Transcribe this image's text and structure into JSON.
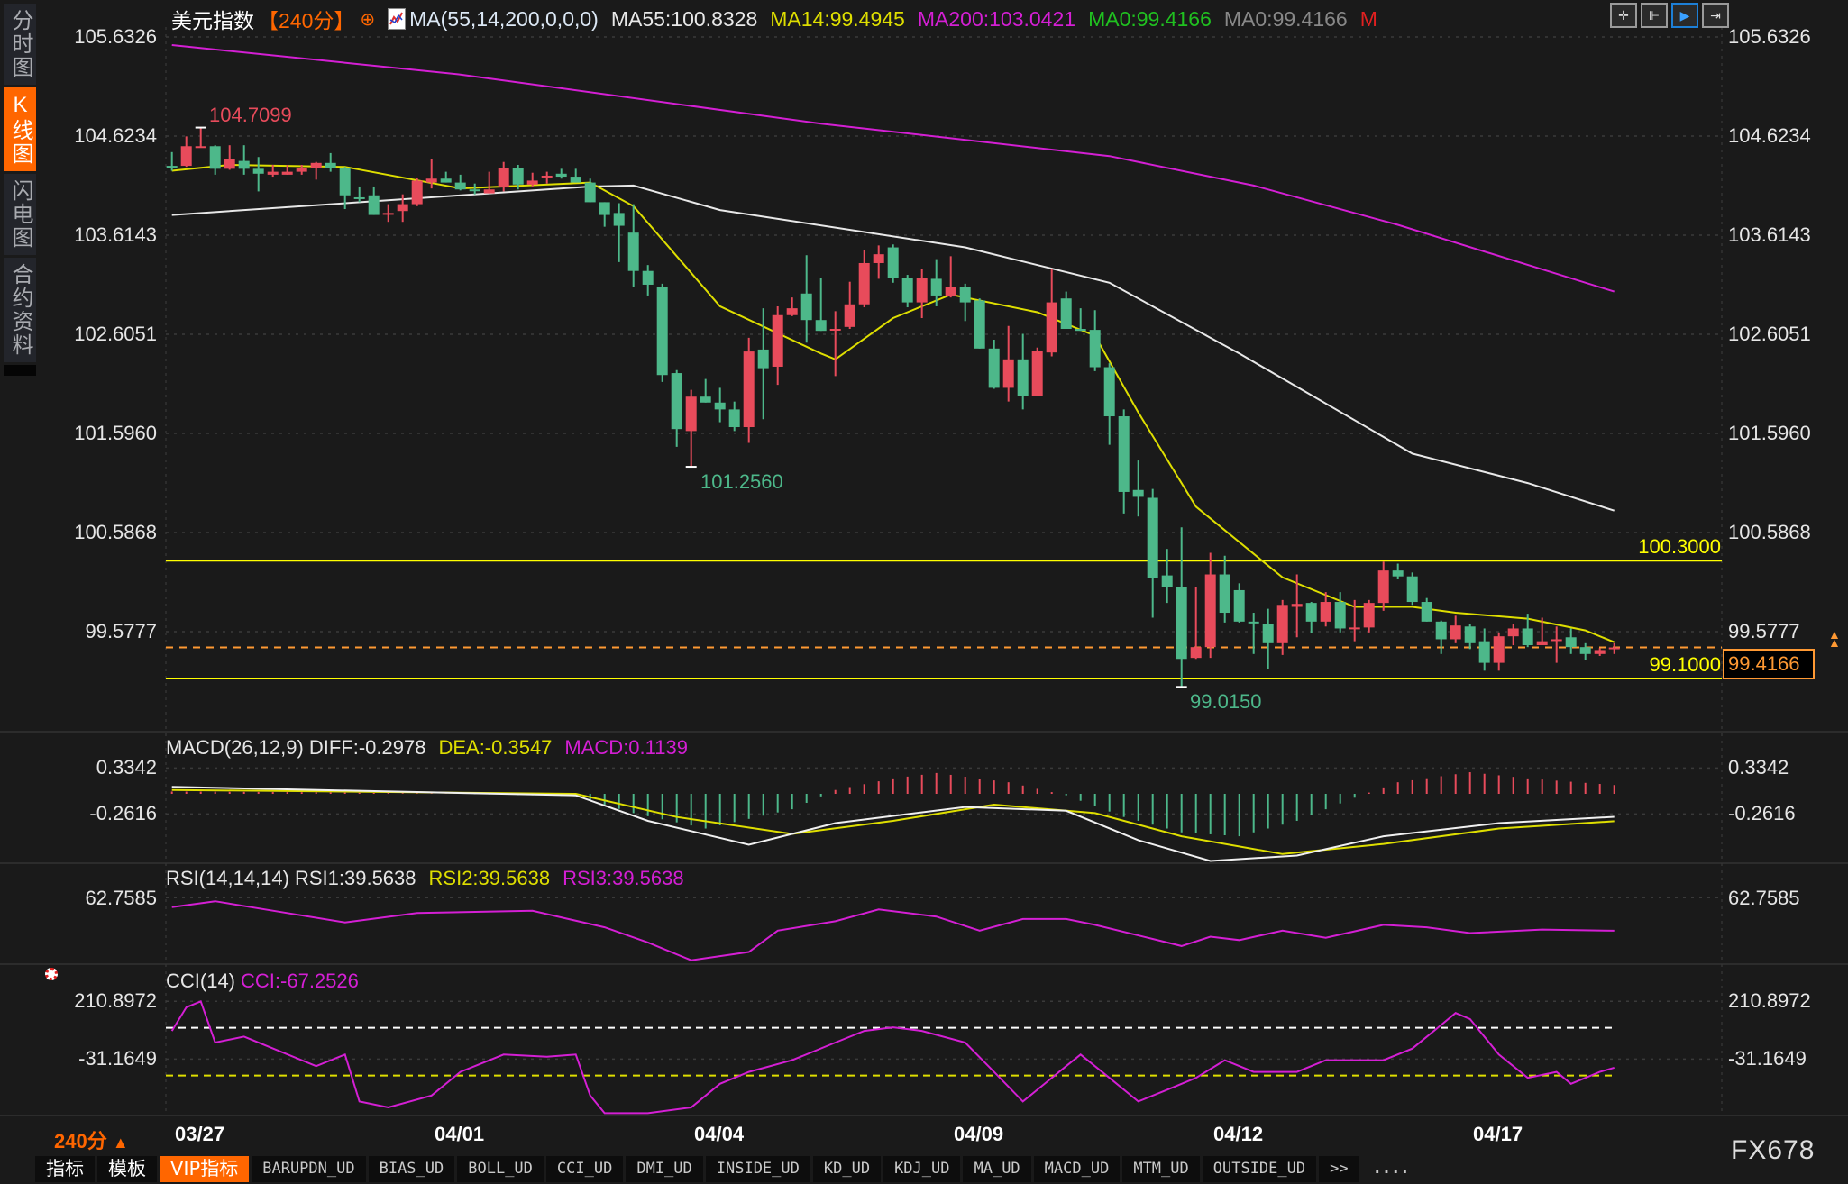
{
  "sidebar": {
    "tabs": [
      {
        "label": "分时图"
      },
      {
        "label": "K线图",
        "active": true
      },
      {
        "label": "闪电图"
      },
      {
        "label": "合约资料"
      }
    ]
  },
  "header": {
    "symbol": "美元指数",
    "period": "【240分】",
    "period_icon": "crosshair-circle-icon",
    "ma_params": "MA(55,14,200,0,0,0)",
    "ma55": "MA55:100.8328",
    "ma14": "MA14:99.4945",
    "ma200": "MA200:103.0421",
    "ma0a": "MA0:99.4166",
    "ma0b": "MA0:99.4166",
    "m": "M"
  },
  "toolbar": {
    "icons": [
      "crosshair-icon",
      "fit-range-icon",
      "play-forward-icon",
      "jump-end-icon"
    ],
    "active": 2
  },
  "colors": {
    "up": "#e84b5b",
    "down": "#4db88a",
    "ma55": "#e8e8e8",
    "ma14": "#dede00",
    "ma200": "#d41fd4",
    "support": "#ffff00",
    "current": "#ff9933",
    "accent": "#ff6600"
  },
  "price_axis": {
    "labels": [
      "105.6326",
      "104.6234",
      "103.6143",
      "102.6051",
      "101.5960",
      "100.5868",
      "99.5777"
    ],
    "values": [
      105.6326,
      104.6234,
      103.6143,
      102.6051,
      101.596,
      100.5868,
      99.5777
    ]
  },
  "levels": {
    "resistance": {
      "value": 100.3,
      "label": "100.3000"
    },
    "support": {
      "value": 99.1,
      "label": "99.1000"
    },
    "current": {
      "value": 99.4166,
      "label": "99.4166"
    }
  },
  "annotations": {
    "high": {
      "label": "104.7099",
      "index": 2,
      "value": 104.7099
    },
    "low1": {
      "label": "101.2560",
      "index": 36,
      "value": 101.256
    },
    "low2": {
      "label": "99.0150",
      "index": 70,
      "value": 99.015
    }
  },
  "candles": [
    [
      104.32,
      104.46,
      104.27,
      104.31
    ],
    [
      104.32,
      104.62,
      104.31,
      104.52
    ],
    [
      104.51,
      104.7099,
      104.51,
      104.52
    ],
    [
      104.52,
      104.53,
      104.23,
      104.29
    ],
    [
      104.29,
      104.53,
      104.28,
      104.39
    ],
    [
      104.37,
      104.53,
      104.23,
      104.29
    ],
    [
      104.29,
      104.41,
      104.06,
      104.24
    ],
    [
      104.23,
      104.33,
      104.21,
      104.26
    ],
    [
      104.23,
      104.33,
      104.23,
      104.26
    ],
    [
      104.26,
      104.33,
      104.23,
      104.3
    ],
    [
      104.3,
      104.36,
      104.18,
      104.35
    ],
    [
      104.35,
      104.45,
      104.26,
      104.3
    ],
    [
      104.3,
      104.31,
      103.88,
      104.02
    ],
    [
      104.0,
      104.11,
      103.95,
      103.99
    ],
    [
      104.02,
      104.11,
      103.82,
      103.82
    ],
    [
      103.83,
      103.93,
      103.75,
      103.84
    ],
    [
      103.86,
      104.03,
      103.75,
      103.93
    ],
    [
      103.93,
      104.2,
      103.91,
      104.17
    ],
    [
      104.15,
      104.39,
      104.09,
      104.19
    ],
    [
      104.19,
      104.26,
      104.15,
      104.15
    ],
    [
      104.15,
      104.23,
      104.07,
      104.08
    ],
    [
      104.08,
      104.14,
      104.03,
      104.07
    ],
    [
      104.04,
      104.26,
      104.04,
      104.08
    ],
    [
      104.1,
      104.36,
      104.06,
      104.3
    ],
    [
      104.3,
      104.33,
      104.08,
      104.13
    ],
    [
      104.13,
      104.25,
      104.11,
      104.17
    ],
    [
      104.21,
      104.26,
      104.14,
      104.22
    ],
    [
      104.24,
      104.29,
      104.19,
      104.21
    ],
    [
      104.21,
      104.29,
      104.15,
      104.15
    ],
    [
      104.15,
      104.19,
      103.95,
      103.95
    ],
    [
      103.95,
      103.95,
      103.7,
      103.82
    ],
    [
      103.84,
      103.94,
      103.34,
      103.71
    ],
    [
      103.64,
      103.93,
      103.09,
      103.25
    ],
    [
      103.25,
      103.31,
      103.0,
      103.11
    ],
    [
      103.09,
      103.12,
      102.12,
      102.19
    ],
    [
      102.21,
      102.24,
      101.46,
      101.64
    ],
    [
      101.62,
      102.04,
      101.256,
      101.97
    ],
    [
      101.97,
      102.15,
      101.91,
      101.91
    ],
    [
      101.91,
      102.06,
      101.71,
      101.84
    ],
    [
      101.84,
      101.92,
      101.62,
      101.66
    ],
    [
      101.66,
      102.57,
      101.5,
      102.43
    ],
    [
      102.45,
      102.87,
      101.74,
      102.26
    ],
    [
      102.275,
      102.89,
      102.09,
      102.8
    ],
    [
      102.8,
      102.98,
      102.79,
      102.87
    ],
    [
      103.02,
      103.41,
      102.52,
      102.75
    ],
    [
      102.75,
      103.18,
      102.64,
      102.64
    ],
    [
      102.65,
      102.84,
      102.18,
      102.66
    ],
    [
      102.68,
      103.14,
      102.66,
      102.91
    ],
    [
      102.91,
      103.46,
      102.88,
      103.33
    ],
    [
      103.33,
      103.51,
      103.17,
      103.42
    ],
    [
      103.49,
      103.52,
      103.13,
      103.18
    ],
    [
      103.18,
      103.21,
      102.88,
      102.93
    ],
    [
      102.93,
      103.27,
      102.77,
      103.18
    ],
    [
      103.17,
      103.37,
      102.89,
      103.0
    ],
    [
      102.99,
      103.4,
      102.98,
      103.09
    ],
    [
      103.09,
      103.12,
      102.74,
      102.93
    ],
    [
      102.95,
      102.97,
      102.46,
      102.46
    ],
    [
      102.46,
      102.55,
      102.05,
      102.06
    ],
    [
      102.06,
      102.69,
      101.92,
      102.35
    ],
    [
      102.35,
      102.61,
      101.84,
      101.98
    ],
    [
      101.98,
      102.47,
      101.98,
      102.44
    ],
    [
      102.42,
      103.27,
      102.38,
      102.93
    ],
    [
      102.97,
      103.04,
      102.66,
      102.66
    ],
    [
      102.66,
      102.87,
      102.64,
      102.64
    ],
    [
      102.65,
      102.85,
      102.23,
      102.27
    ],
    [
      102.27,
      102.31,
      101.48,
      101.77
    ],
    [
      101.77,
      101.84,
      100.78,
      101.0
    ],
    [
      101.02,
      101.32,
      100.75,
      100.95
    ],
    [
      100.94,
      101.03,
      99.72,
      100.12
    ],
    [
      100.15,
      100.42,
      99.87,
      100.03
    ],
    [
      100.03,
      100.64,
      99.015,
      99.3
    ],
    [
      99.31,
      100.03,
      99.3,
      99.42
    ],
    [
      99.42,
      100.38,
      99.31,
      100.16
    ],
    [
      100.16,
      100.35,
      99.67,
      99.77
    ],
    [
      100.0,
      100.07,
      99.67,
      99.68
    ],
    [
      99.68,
      99.77,
      99.35,
      99.67
    ],
    [
      99.66,
      99.81,
      99.2,
      99.46
    ],
    [
      99.46,
      99.9,
      99.34,
      99.85
    ],
    [
      99.83,
      100.16,
      99.52,
      99.86
    ],
    [
      99.87,
      99.88,
      99.56,
      99.68
    ],
    [
      99.68,
      99.98,
      99.63,
      99.88
    ],
    [
      99.88,
      99.98,
      99.57,
      99.61
    ],
    [
      99.61,
      99.9,
      99.48,
      99.62
    ],
    [
      99.62,
      99.9,
      99.57,
      99.87
    ],
    [
      99.87,
      100.29,
      99.79,
      100.2
    ],
    [
      100.2,
      100.27,
      100.11,
      100.14
    ],
    [
      100.14,
      100.18,
      99.85,
      99.88
    ],
    [
      99.88,
      99.92,
      99.68,
      99.68
    ],
    [
      99.68,
      99.69,
      99.35,
      99.5
    ],
    [
      99.5,
      99.74,
      99.46,
      99.64
    ],
    [
      99.63,
      99.66,
      99.4,
      99.46
    ],
    [
      99.48,
      99.61,
      99.18,
      99.26
    ],
    [
      99.26,
      99.57,
      99.18,
      99.53
    ],
    [
      99.53,
      99.66,
      99.44,
      99.61
    ],
    [
      99.61,
      99.76,
      99.42,
      99.44
    ],
    [
      99.44,
      99.72,
      99.44,
      99.48
    ],
    [
      99.49,
      99.63,
      99.26,
      99.5
    ],
    [
      99.52,
      99.61,
      99.35,
      99.42
    ],
    [
      99.42,
      99.46,
      99.29,
      99.35
    ],
    [
      99.35,
      99.41,
      99.33,
      99.39
    ],
    [
      99.4,
      99.46,
      99.35,
      99.4166
    ]
  ],
  "ma_lines": {
    "ma200": [
      [
        0,
        105.55
      ],
      [
        20,
        105.25
      ],
      [
        45,
        104.75
      ],
      [
        65,
        104.42
      ],
      [
        75,
        104.12
      ],
      [
        85,
        103.72
      ],
      [
        100,
        103.04
      ]
    ],
    "ma55": [
      [
        0,
        103.82
      ],
      [
        29,
        104.11
      ],
      [
        32,
        104.12
      ],
      [
        38,
        103.87
      ],
      [
        55,
        103.49
      ],
      [
        65,
        103.13
      ],
      [
        74,
        102.41
      ],
      [
        86,
        101.39
      ],
      [
        94,
        101.09
      ],
      [
        100,
        100.81
      ]
    ],
    "ma14": [
      [
        0,
        104.27
      ],
      [
        4,
        104.33
      ],
      [
        12,
        104.31
      ],
      [
        20,
        104.09
      ],
      [
        29,
        104.15
      ],
      [
        32,
        103.91
      ],
      [
        38,
        102.89
      ],
      [
        45,
        102.41
      ],
      [
        46,
        102.35
      ],
      [
        50,
        102.77
      ],
      [
        54,
        103.01
      ],
      [
        60,
        102.83
      ],
      [
        64,
        102.59
      ],
      [
        67,
        101.81
      ],
      [
        71,
        100.85
      ],
      [
        77,
        100.13
      ],
      [
        82,
        99.83
      ],
      [
        86,
        99.83
      ],
      [
        89,
        99.77
      ],
      [
        94,
        99.71
      ],
      [
        98,
        99.59
      ],
      [
        100,
        99.47
      ]
    ]
  },
  "macd": {
    "title": "MACD(26,12,9)",
    "diff_label": "DIFF:-0.2978",
    "dea_label": "DEA:-0.3547",
    "macd_label": "MACD:0.1139",
    "axis_labels": [
      "0.3342",
      "-0.2616"
    ],
    "axis_values": [
      0.3342,
      -0.2616
    ],
    "diff": [
      [
        0,
        0.09
      ],
      [
        28,
        -0.02
      ],
      [
        33,
        -0.35
      ],
      [
        40,
        -0.66
      ],
      [
        46,
        -0.38
      ],
      [
        55,
        -0.17
      ],
      [
        62,
        -0.22
      ],
      [
        67,
        -0.6
      ],
      [
        72,
        -0.87
      ],
      [
        78,
        -0.8
      ],
      [
        84,
        -0.55
      ],
      [
        92,
        -0.38
      ],
      [
        100,
        -0.2978
      ]
    ],
    "dea": [
      [
        0,
        0.05
      ],
      [
        28,
        0.0
      ],
      [
        35,
        -0.3
      ],
      [
        43,
        -0.52
      ],
      [
        50,
        -0.35
      ],
      [
        57,
        -0.14
      ],
      [
        64,
        -0.25
      ],
      [
        70,
        -0.55
      ],
      [
        77,
        -0.78
      ],
      [
        84,
        -0.65
      ],
      [
        92,
        -0.45
      ],
      [
        100,
        -0.3547
      ]
    ],
    "histogram": [
      [
        0,
        0.03
      ],
      [
        10,
        0.02
      ],
      [
        20,
        0.0
      ],
      [
        28,
        -0.03
      ],
      [
        32,
        -0.25
      ],
      [
        37,
        -0.45
      ],
      [
        43,
        -0.2
      ],
      [
        46,
        0.05
      ],
      [
        50,
        0.2
      ],
      [
        53,
        0.27
      ],
      [
        58,
        0.15
      ],
      [
        62,
        -0.02
      ],
      [
        66,
        -0.3
      ],
      [
        70,
        -0.5
      ],
      [
        74,
        -0.55
      ],
      [
        78,
        -0.35
      ],
      [
        82,
        -0.05
      ],
      [
        85,
        0.15
      ],
      [
        90,
        0.28
      ],
      [
        94,
        0.2
      ],
      [
        100,
        0.1139
      ]
    ]
  },
  "rsi": {
    "title": "RSI(14,14,14)",
    "rsi1_label": "RSI1:39.5638",
    "rsi2_label": "RSI2:39.5638",
    "rsi3_label": "RSI3:39.5638",
    "axis_label": "62.7585",
    "axis_value": 62.7585,
    "values": [
      [
        0,
        56.1
      ],
      [
        3,
        60.3
      ],
      [
        8,
        52
      ],
      [
        12,
        45.4
      ],
      [
        17,
        52
      ],
      [
        25,
        53.6
      ],
      [
        30,
        42
      ],
      [
        33,
        31.3
      ],
      [
        36,
        18.8
      ],
      [
        40,
        24.6
      ],
      [
        42,
        39.6
      ],
      [
        46,
        46.2
      ],
      [
        49,
        54.5
      ],
      [
        53,
        49.5
      ],
      [
        56,
        39.6
      ],
      [
        59,
        47.8
      ],
      [
        62,
        47.8
      ],
      [
        64,
        43.7
      ],
      [
        68,
        33.8
      ],
      [
        70,
        28.8
      ],
      [
        72,
        35.4
      ],
      [
        74,
        33
      ],
      [
        77,
        39.6
      ],
      [
        80,
        34.6
      ],
      [
        84,
        43.7
      ],
      [
        87,
        42
      ],
      [
        90,
        37.9
      ],
      [
        95,
        40.4
      ],
      [
        100,
        39.5638
      ]
    ]
  },
  "cci": {
    "title": "CCI(14)",
    "cci_label": "CCI:-67.2526",
    "axis_labels": [
      "210.8972",
      "-31.1649"
    ],
    "axis_values": [
      210.8972,
      -31.1649
    ],
    "bands": [
      100,
      -100
    ],
    "values": [
      [
        0,
        87
      ],
      [
        1,
        186
      ],
      [
        2,
        211
      ],
      [
        3,
        38
      ],
      [
        5,
        63
      ],
      [
        10,
        -61
      ],
      [
        12,
        -12
      ],
      [
        13,
        -209
      ],
      [
        15,
        -234
      ],
      [
        18,
        -184
      ],
      [
        20,
        -85
      ],
      [
        23,
        -12
      ],
      [
        26,
        -21
      ],
      [
        28,
        -12
      ],
      [
        29,
        -184
      ],
      [
        30,
        -258
      ],
      [
        33,
        -258
      ],
      [
        36,
        -234
      ],
      [
        38,
        -135
      ],
      [
        40,
        -85
      ],
      [
        43,
        -36
      ],
      [
        46,
        38
      ],
      [
        48,
        87
      ],
      [
        50,
        102
      ],
      [
        52,
        87
      ],
      [
        55,
        38
      ],
      [
        57,
        -85
      ],
      [
        59,
        -209
      ],
      [
        60,
        -160
      ],
      [
        62,
        -61
      ],
      [
        63,
        -12
      ],
      [
        65,
        -110
      ],
      [
        67,
        -209
      ],
      [
        69,
        -160
      ],
      [
        71,
        -110
      ],
      [
        73,
        -36
      ],
      [
        75,
        -85
      ],
      [
        78,
        -85
      ],
      [
        80,
        -36
      ],
      [
        84,
        -36
      ],
      [
        86,
        13
      ],
      [
        88,
        112
      ],
      [
        89,
        162
      ],
      [
        90,
        137
      ],
      [
        92,
        -12
      ],
      [
        94,
        -110
      ],
      [
        96,
        -85
      ],
      [
        97,
        -135
      ],
      [
        99,
        -85
      ],
      [
        100,
        -67.2526
      ]
    ]
  },
  "x_axis": {
    "dates": [
      {
        "label": "03/27",
        "index": 0
      },
      {
        "label": "04/01",
        "index": 18
      },
      {
        "label": "04/04",
        "index": 36
      },
      {
        "label": "04/09",
        "index": 54
      },
      {
        "label": "04/12",
        "index": 72
      },
      {
        "label": "04/17",
        "index": 90
      }
    ],
    "period_label": "240分",
    "period_arrow": "▲"
  },
  "brand": "FX678",
  "bottom_tabs": [
    {
      "label": "指标",
      "cn": true
    },
    {
      "label": "模板",
      "cn": true
    },
    {
      "label": "VIP指标",
      "cn": true,
      "active": true
    },
    {
      "label": "BARUPDN_UD"
    },
    {
      "label": "BIAS_UD"
    },
    {
      "label": "BOLL_UD"
    },
    {
      "label": "CCI_UD"
    },
    {
      "label": "DMI_UD"
    },
    {
      "label": "INSIDE_UD"
    },
    {
      "label": "KD_UD"
    },
    {
      "label": "KDJ_UD"
    },
    {
      "label": "MA_UD"
    },
    {
      "label": "MACD_UD"
    },
    {
      "label": "MTM_UD"
    },
    {
      "label": "OUTSIDE_UD"
    },
    {
      "label": ">>"
    }
  ],
  "more": "...."
}
